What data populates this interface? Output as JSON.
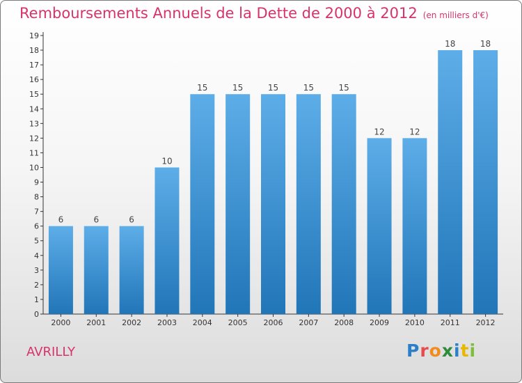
{
  "header": {
    "title": "Remboursements Annuels de la Dette de 2000 à 2012",
    "unit": "(en milliers d'€)"
  },
  "footer": {
    "commune": "AVRILLY",
    "logo_letters": [
      "P",
      "r",
      "o",
      "x",
      "i",
      "t",
      "i"
    ],
    "logo_colors": [
      "#2a7fc8",
      "#e84b4b",
      "#f28c1c",
      "#2e8b3a",
      "#2a7fc8",
      "#e6b800",
      "#7dbf3b"
    ]
  },
  "colors": {
    "title": "#d6336c",
    "bar_light": "#5dade8",
    "bar_dark": "#2176b8",
    "axis": "#333333"
  },
  "chart_data": {
    "type": "bar",
    "title": "Remboursements Annuels de la Dette de 2000 à 2012",
    "subtitle": "(en milliers d'€)",
    "categories": [
      "2000",
      "2001",
      "2002",
      "2003",
      "2004",
      "2005",
      "2006",
      "2007",
      "2008",
      "2009",
      "2010",
      "2011",
      "2012"
    ],
    "values": [
      6,
      6,
      6,
      10,
      15,
      15,
      15,
      15,
      15,
      12,
      12,
      18,
      18
    ],
    "data_labels": [
      "6",
      "6",
      "6",
      "10",
      "15",
      "15",
      "15",
      "15",
      "15",
      "12",
      "12",
      "18",
      "18"
    ],
    "y_ticks": [
      "0",
      "1",
      "2",
      "3",
      "4",
      "5",
      "6",
      "7",
      "8",
      "9",
      "10",
      "11",
      "12",
      "13",
      "14",
      "15",
      "16",
      "17",
      "18",
      "19"
    ],
    "ylim": [
      0,
      19
    ],
    "xlabel": "",
    "ylabel": "",
    "grid": false,
    "legend": "none"
  }
}
